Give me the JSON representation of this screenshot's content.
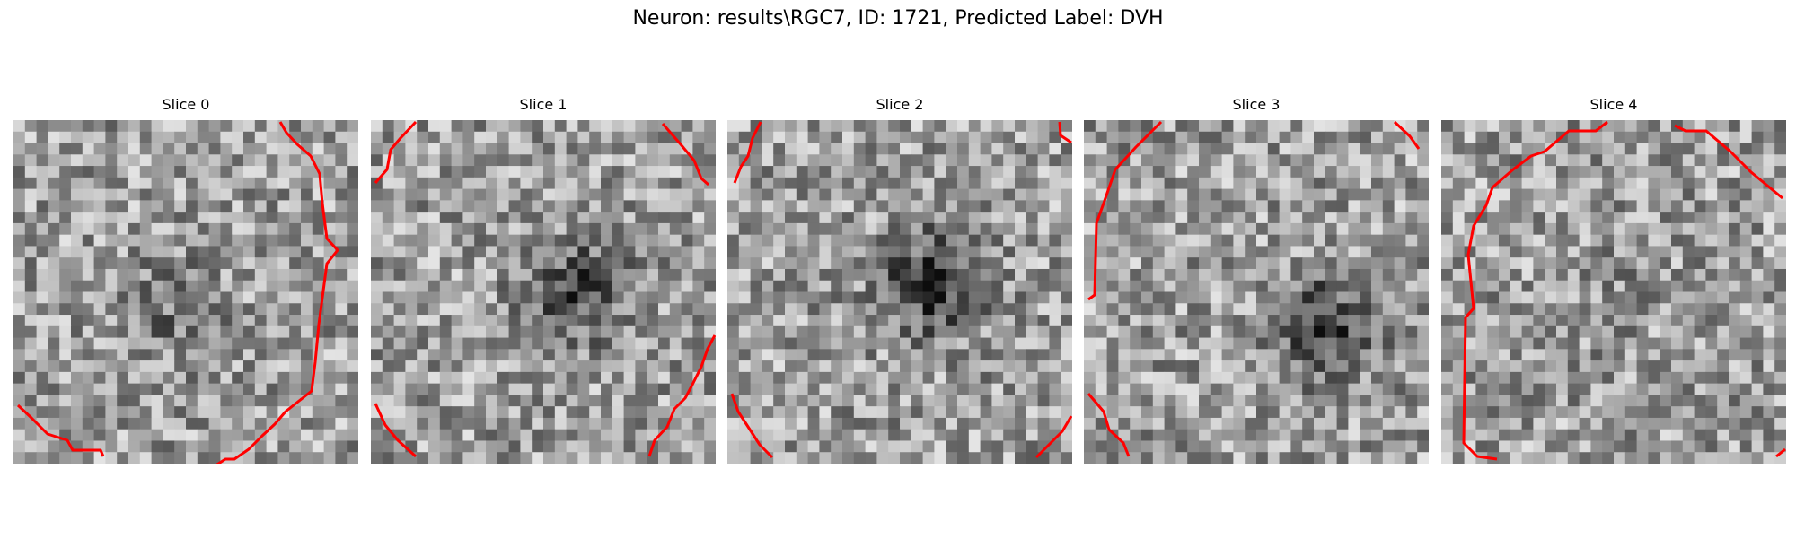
{
  "figure": {
    "title": "Neuron: results\\RGC7, ID: 1721, Predicted Label: DVH"
  },
  "contour_color": "#ff0000",
  "colormap": "grayscale",
  "slices": [
    {
      "label": "Slice 0",
      "grid": 30,
      "dark_spot": [
        0.45,
        0.55
      ],
      "spot_strength": 0.15
    },
    {
      "label": "Slice 1",
      "grid": 30,
      "dark_spot": [
        0.6,
        0.5
      ],
      "spot_strength": 0.35
    },
    {
      "label": "Slice 2",
      "grid": 30,
      "dark_spot": [
        0.6,
        0.48
      ],
      "spot_strength": 0.45
    },
    {
      "label": "Slice 3",
      "grid": 30,
      "dark_spot": [
        0.7,
        0.6
      ],
      "spot_strength": 0.4
    },
    {
      "label": "Slice 4",
      "grid": 30,
      "dark_spot": [
        0.5,
        0.5
      ],
      "spot_strength": 0.05
    }
  ]
}
